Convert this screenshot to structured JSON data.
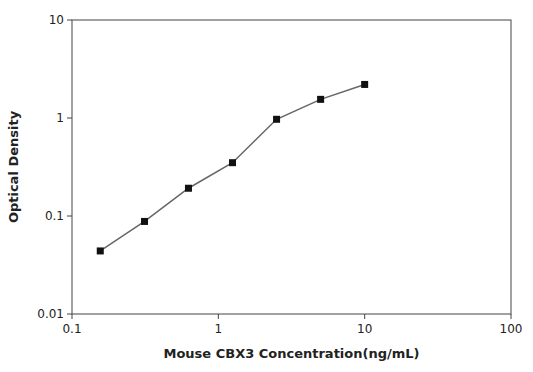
{
  "chart_data": {
    "type": "line",
    "x": [
      0.156,
      0.313,
      0.625,
      1.25,
      2.5,
      5.0,
      10.0
    ],
    "values": [
      0.044,
      0.088,
      0.192,
      0.35,
      0.97,
      1.55,
      2.2
    ],
    "color": "#666666",
    "colors": [
      "#111111",
      "#111111",
      "#111111",
      "#111111",
      "#111111",
      "#111111",
      "#111111"
    ],
    "marker": "square",
    "line_style": "solid",
    "log": true,
    "grid": false,
    "xlim": [
      0.1,
      100
    ],
    "ylim": [
      0.01,
      10
    ],
    "xticks": [
      0.1,
      1,
      10,
      100
    ],
    "yticks": [
      0.01,
      0.1,
      1,
      10
    ],
    "xlabel": "Mouse CBX3 Concentration(ng/mL)",
    "ylabel": "Optical Density"
  }
}
